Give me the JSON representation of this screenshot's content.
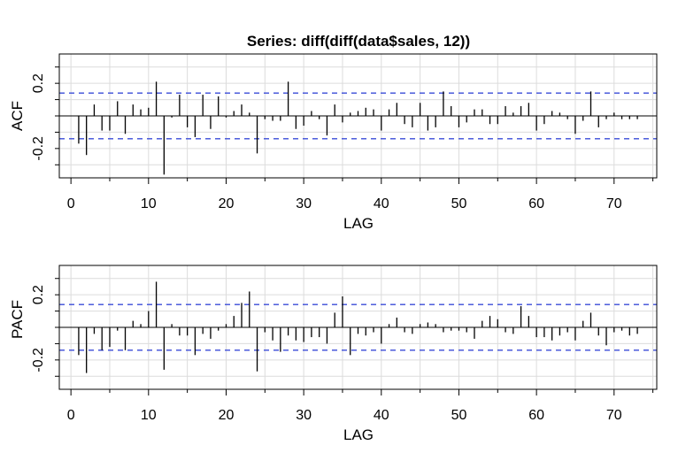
{
  "chart_data": [
    {
      "type": "bar",
      "name": "acf",
      "title": "Series:  diff(diff(data$sales, 12))",
      "xlabel": "LAG",
      "ylabel": "ACF",
      "xlim": [
        -1.5,
        75.5
      ],
      "ylim": [
        -0.38,
        0.38
      ],
      "xticks": [
        0,
        10,
        20,
        30,
        40,
        50,
        60,
        70
      ],
      "xtick_labels": [
        "0",
        "10",
        "20",
        "30",
        "40",
        "50",
        "60",
        "70"
      ],
      "yticks": [
        -0.2,
        0.2
      ],
      "ytick_labels": [
        "-0.2",
        "0.2"
      ],
      "ci": 0.14,
      "grid": true,
      "lags": [
        1,
        2,
        3,
        4,
        5,
        6,
        7,
        8,
        9,
        10,
        11,
        12,
        13,
        14,
        15,
        16,
        17,
        18,
        19,
        20,
        21,
        22,
        23,
        24,
        25,
        26,
        27,
        28,
        29,
        30,
        31,
        32,
        33,
        34,
        35,
        36,
        37,
        38,
        39,
        40,
        41,
        42,
        43,
        44,
        45,
        46,
        47,
        48,
        49,
        50,
        51,
        52,
        53,
        54,
        55,
        56,
        57,
        58,
        59,
        60,
        61,
        62,
        63,
        64,
        65,
        66,
        67,
        68,
        69,
        70,
        71,
        72,
        73
      ],
      "values": [
        -0.17,
        -0.24,
        0.07,
        -0.09,
        -0.09,
        0.09,
        -0.11,
        0.07,
        0.04,
        0.05,
        0.21,
        -0.36,
        -0.01,
        0.13,
        -0.07,
        -0.13,
        0.13,
        -0.08,
        0.12,
        -0.01,
        0.03,
        0.07,
        0.02,
        -0.23,
        -0.02,
        -0.03,
        -0.03,
        0.21,
        -0.08,
        -0.06,
        0.03,
        -0.02,
        -0.12,
        0.07,
        -0.04,
        0.02,
        0.03,
        0.05,
        0.04,
        -0.09,
        0.04,
        0.08,
        -0.05,
        -0.07,
        0.08,
        -0.09,
        -0.07,
        0.15,
        0.06,
        -0.07,
        -0.04,
        0.04,
        0.04,
        -0.05,
        -0.05,
        0.06,
        0.02,
        0.06,
        0.08,
        -0.09,
        -0.05,
        0.03,
        0.02,
        -0.02,
        -0.11,
        -0.03,
        0.15,
        -0.07,
        -0.02,
        0.02,
        -0.02,
        -0.02,
        -0.02
      ]
    },
    {
      "type": "bar",
      "name": "pacf",
      "title": "",
      "xlabel": "LAG",
      "ylabel": "PACF",
      "xlim": [
        -1.5,
        75.5
      ],
      "ylim": [
        -0.38,
        0.38
      ],
      "xticks": [
        0,
        10,
        20,
        30,
        40,
        50,
        60,
        70
      ],
      "xtick_labels": [
        "0",
        "10",
        "20",
        "30",
        "40",
        "50",
        "60",
        "70"
      ],
      "yticks": [
        -0.2,
        0.2
      ],
      "ytick_labels": [
        "-0.2",
        "0.2"
      ],
      "ci": 0.14,
      "grid": true,
      "lags": [
        1,
        2,
        3,
        4,
        5,
        6,
        7,
        8,
        9,
        10,
        11,
        12,
        13,
        14,
        15,
        16,
        17,
        18,
        19,
        20,
        21,
        22,
        23,
        24,
        25,
        26,
        27,
        28,
        29,
        30,
        31,
        32,
        33,
        34,
        35,
        36,
        37,
        38,
        39,
        40,
        41,
        42,
        43,
        44,
        45,
        46,
        47,
        48,
        49,
        50,
        51,
        52,
        53,
        54,
        55,
        56,
        57,
        58,
        59,
        60,
        61,
        62,
        63,
        64,
        65,
        66,
        67,
        68,
        69,
        70,
        71,
        72,
        73
      ],
      "values": [
        -0.17,
        -0.28,
        -0.04,
        -0.14,
        -0.12,
        -0.02,
        -0.14,
        0.04,
        0.02,
        0.1,
        0.28,
        -0.26,
        0.02,
        -0.05,
        -0.05,
        -0.17,
        -0.04,
        -0.07,
        -0.02,
        0.02,
        0.07,
        0.15,
        0.22,
        -0.27,
        -0.03,
        -0.08,
        -0.15,
        -0.05,
        -0.08,
        -0.09,
        -0.06,
        -0.06,
        -0.1,
        0.09,
        0.19,
        -0.17,
        -0.04,
        -0.05,
        -0.03,
        -0.1,
        0.02,
        0.06,
        -0.03,
        -0.04,
        0.02,
        0.03,
        0.02,
        -0.03,
        -0.02,
        -0.02,
        -0.03,
        -0.07,
        0.04,
        0.07,
        0.05,
        -0.03,
        -0.04,
        0.13,
        0.07,
        -0.06,
        -0.06,
        -0.08,
        -0.05,
        -0.03,
        -0.08,
        0.04,
        0.09,
        -0.05,
        -0.11,
        -0.03,
        -0.02,
        -0.05,
        -0.04
      ]
    }
  ],
  "colors": {
    "bars": "#000000",
    "ci_line": "#3a4bd8",
    "grid": "#dcdcdc",
    "frame": "#000000"
  }
}
